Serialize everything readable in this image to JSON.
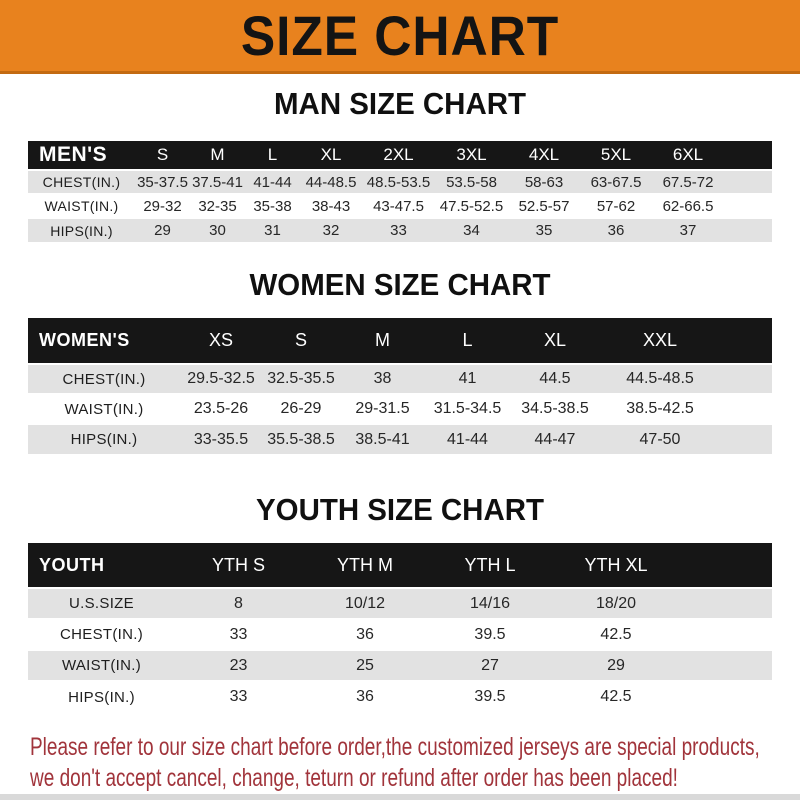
{
  "banner": {
    "title": "SIZE CHART",
    "bg_color": "#E8821E",
    "text_color": "#141414"
  },
  "men": {
    "heading": "MAN SIZE CHART",
    "corner_label": "MEN'S",
    "columns": [
      "S",
      "M",
      "L",
      "XL",
      "2XL",
      "3XL",
      "4XL",
      "5XL",
      "6XL"
    ],
    "rows": [
      {
        "label": "CHEST(IN.)",
        "values": [
          "35-37.5",
          "37.5-41",
          "41-44",
          "44-48.5",
          "48.5-53.5",
          "53.5-58",
          "58-63",
          "63-67.5",
          "67.5-72"
        ]
      },
      {
        "label": "WAIST(IN.)",
        "values": [
          "29-32",
          "32-35",
          "35-38",
          "38-43",
          "43-47.5",
          "47.5-52.5",
          "52.5-57",
          "57-62",
          "62-66.5"
        ]
      },
      {
        "label": "HIPS(IN.)",
        "values": [
          "29",
          "30",
          "31",
          "32",
          "33",
          "34",
          "35",
          "36",
          "37"
        ]
      }
    ]
  },
  "women": {
    "heading": "WOMEN SIZE CHART",
    "corner_label": "WOMEN'S",
    "columns": [
      "XS",
      "S",
      "M",
      "L",
      "XL",
      "XXL"
    ],
    "rows": [
      {
        "label": "CHEST(IN.)",
        "values": [
          "29.5-32.5",
          "32.5-35.5",
          "38",
          "41",
          "44.5",
          "44.5-48.5"
        ]
      },
      {
        "label": "WAIST(IN.)",
        "values": [
          "23.5-26",
          "26-29",
          "29-31.5",
          "31.5-34.5",
          "34.5-38.5",
          "38.5-42.5"
        ]
      },
      {
        "label": "HIPS(IN.)",
        "values": [
          "33-35.5",
          "35.5-38.5",
          "38.5-41",
          "41-44",
          "44-47",
          "47-50"
        ]
      }
    ]
  },
  "youth": {
    "heading": "YOUTH SIZE CHART",
    "corner_label": "YOUTH",
    "columns": [
      "YTH S",
      "YTH M",
      "YTH L",
      "YTH XL"
    ],
    "rows": [
      {
        "label": "U.S.SIZE",
        "values": [
          "8",
          "10/12",
          "14/16",
          "18/20"
        ]
      },
      {
        "label": "CHEST(IN.)",
        "values": [
          "33",
          "36",
          "39.5",
          "42.5"
        ]
      },
      {
        "label": "WAIST(IN.)",
        "values": [
          "23",
          "25",
          "27",
          "29"
        ]
      },
      {
        "label": "HIPS(IN.)",
        "values": [
          "33",
          "36",
          "39.5",
          "42.5"
        ]
      }
    ]
  },
  "notice": {
    "line1": "Please refer to our size chart before order,the customized jerseys are special products,",
    "line2": "we don't accept cancel, change, teturn or refund after order has been placed!",
    "text_color": "#A1343B"
  },
  "colors": {
    "header_bar": "#161616",
    "row_stripe": "#E2E2E2"
  }
}
